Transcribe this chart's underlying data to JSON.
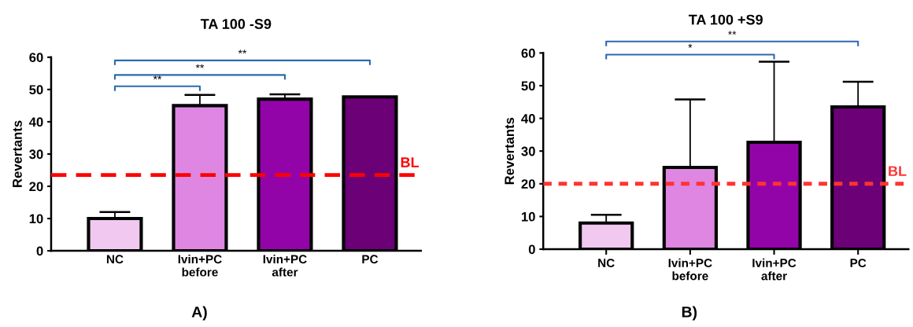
{
  "chart_data": [
    {
      "type": "bar",
      "title": "TA 100 -S9",
      "ylabel": "Revertants",
      "categories": [
        "NC",
        "Ivin+PC\nbefore",
        "Ivin+PC\nafter",
        "PC"
      ],
      "values": [
        10,
        45,
        47,
        47.7
      ],
      "errors": [
        2,
        3.3,
        1.5,
        null
      ],
      "colors": [
        "#f0c8f0",
        "#de86e2",
        "#9304a8",
        "#6b0077"
      ],
      "ylim": [
        0,
        60
      ],
      "yticks": [
        0,
        10,
        20,
        30,
        40,
        50,
        60
      ],
      "grid": false,
      "ref_lines": [
        {
          "axis": "y",
          "value": 23.5,
          "label": "BL",
          "color": "#ff0000",
          "line_style": "dashed"
        }
      ],
      "annotations": [
        "**",
        "**",
        "**",
        "A)"
      ]
    },
    {
      "type": "bar",
      "title": "TA 100 +S9",
      "ylabel": "Revertants",
      "categories": [
        "NC",
        "Ivin+PC\nbefore",
        "Ivin+PC\nafter",
        "PC"
      ],
      "values": [
        8,
        25,
        32.7,
        43.5
      ],
      "errors": [
        2.5,
        20.8,
        24.6,
        7.7
      ],
      "colors": [
        "#f0c8f0",
        "#de86e2",
        "#9304a8",
        "#6b0077"
      ],
      "ylim": [
        0,
        60
      ],
      "yticks": [
        0,
        10,
        20,
        30,
        40,
        50,
        60
      ],
      "grid": false,
      "ref_lines": [
        {
          "axis": "y",
          "value": 20,
          "label": "BL",
          "color": "#ff3333",
          "line_style": "dotted"
        }
      ],
      "annotations": [
        "*",
        "**",
        "B)"
      ]
    }
  ]
}
